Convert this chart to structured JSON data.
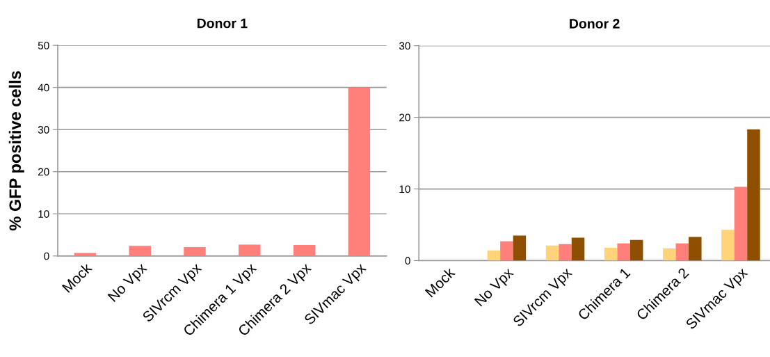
{
  "chart_data": [
    {
      "type": "bar",
      "title": "Donor 1",
      "ylabel": "% GFP positive cells",
      "categories": [
        "Mock",
        "No Vpx",
        "SIVrcm Vpx",
        "Chimera 1 Vpx",
        "Chimera 2 Vpx",
        "SIVmac Vpx"
      ],
      "series": [
        {
          "color": "#ff7f7b",
          "values": [
            0.7,
            2.4,
            2.1,
            2.7,
            2.6,
            40
          ]
        }
      ],
      "ylim": [
        0,
        50
      ],
      "yticks": [
        0,
        10,
        20,
        30,
        40,
        50
      ],
      "grid": "y"
    },
    {
      "type": "bar",
      "title": "Donor 2",
      "categories": [
        "Mock",
        "No Vpx",
        "SIVrcm Vpx",
        "Chimera 1",
        "Chimera 2",
        "SIVmac Vpx"
      ],
      "series": [
        {
          "color": "#fed37a",
          "values": [
            0,
            1.4,
            2.1,
            1.8,
            1.7,
            4.3
          ]
        },
        {
          "color": "#ff7f7b",
          "values": [
            0,
            2.7,
            2.3,
            2.4,
            2.4,
            10.3
          ]
        },
        {
          "color": "#8f4f00",
          "values": [
            0,
            3.5,
            3.2,
            2.9,
            3.3,
            18.3
          ]
        }
      ],
      "ylim": [
        0,
        30
      ],
      "yticks": [
        0,
        10,
        20,
        30
      ],
      "grid": "y"
    }
  ]
}
